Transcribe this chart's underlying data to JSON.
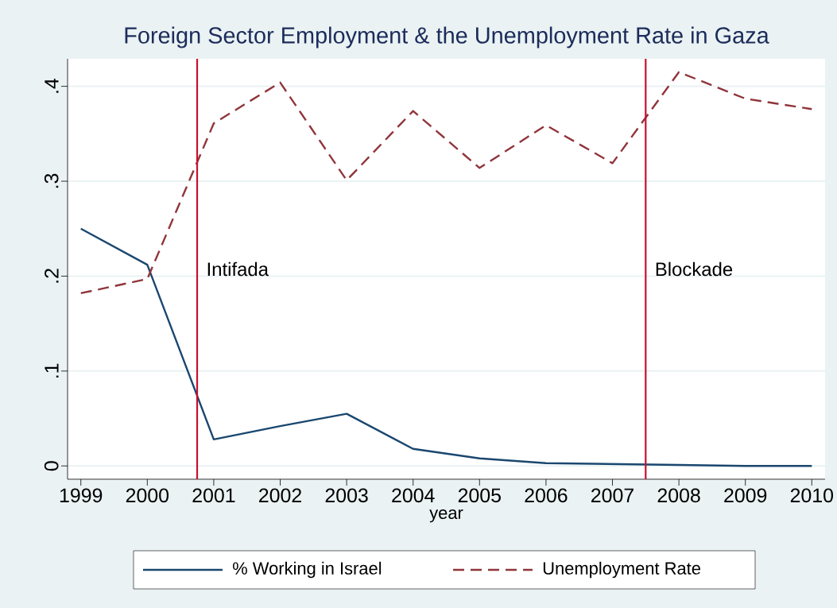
{
  "chart_data": {
    "type": "line",
    "title": "Foreign Sector Employment & the Unemployment Rate in Gaza",
    "xlabel": "year",
    "x": [
      1999,
      2000,
      2001,
      2002,
      2003,
      2004,
      2005,
      2006,
      2007,
      2008,
      2009,
      2010
    ],
    "series": [
      {
        "name": "% Working in Israel",
        "color": "#1a476f",
        "line_style": "solid",
        "values": [
          0.25,
          0.212,
          0.028,
          0.042,
          0.055,
          0.018,
          0.008,
          0.003,
          0.002,
          0.001,
          0.0,
          0.0
        ]
      },
      {
        "name": "Unemployment Rate",
        "color": "#90353b",
        "line_style": "dashed",
        "values": [
          0.182,
          0.197,
          0.361,
          0.404,
          0.301,
          0.374,
          0.314,
          0.359,
          0.319,
          0.415,
          0.387,
          0.376
        ]
      }
    ],
    "xlim": [
      1998.8,
      2010.2
    ],
    "ylim": [
      -0.014,
      0.429
    ],
    "xticks": [
      1999,
      2000,
      2001,
      2002,
      2003,
      2004,
      2005,
      2006,
      2007,
      2008,
      2009,
      2010
    ],
    "yticks": [
      0,
      {
        "value": 0.1,
        "label": ".1"
      },
      {
        "value": 0.2,
        "label": ".2"
      },
      {
        "value": 0.3,
        "label": ".3"
      },
      {
        "value": 0.4,
        "label": ".4"
      }
    ],
    "ref_lines": [
      {
        "axis": "x",
        "value": 2000.75,
        "label": "Intifada",
        "color": "#c8102e"
      },
      {
        "axis": "x",
        "value": 2007.5,
        "label": "Blockade",
        "color": "#c8102e"
      }
    ],
    "grid": "y",
    "legend": "bottom",
    "marker": "none"
  }
}
